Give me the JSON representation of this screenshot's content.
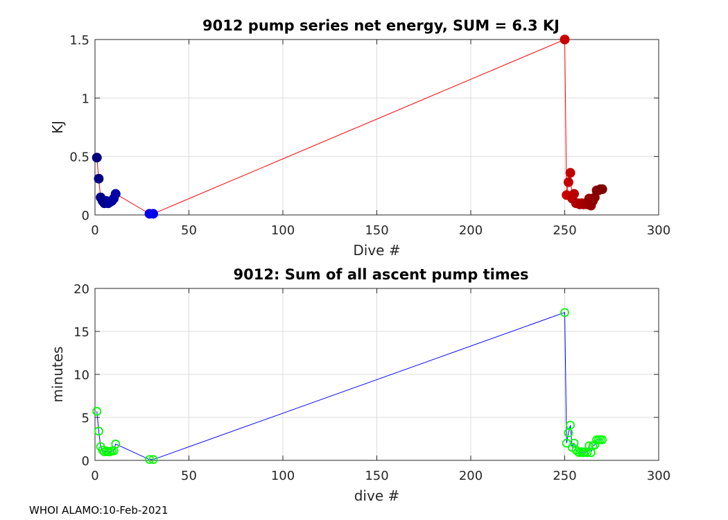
{
  "footer": "WHOI ALAMO:10-Feb-2021",
  "chart_data": [
    {
      "type": "line",
      "title": "9012 pump series net energy, SUM =   6.3 KJ",
      "xlabel": "Dive #",
      "ylabel": "KJ",
      "xlim": [
        0,
        300
      ],
      "ylim": [
        0,
        1.5
      ],
      "xticks": [
        "0",
        "50",
        "100",
        "150",
        "200",
        "250",
        "300"
      ],
      "yticks": [
        "0",
        "0.5",
        "1",
        "1.5"
      ],
      "grid": true,
      "line_color": "#ff0000",
      "marker": "filled-circle",
      "marker_colormap": "jet (colored by dive #)",
      "x": [
        1,
        2,
        3,
        4,
        5,
        6,
        7,
        8,
        9,
        10,
        11,
        29,
        31,
        250,
        251,
        252,
        253,
        254,
        255,
        256,
        257,
        258,
        259,
        260,
        261,
        262,
        263,
        264,
        265,
        266,
        267,
        268,
        269,
        270
      ],
      "values": [
        0.49,
        0.31,
        0.15,
        0.12,
        0.1,
        0.12,
        0.1,
        0.11,
        0.12,
        0.14,
        0.18,
        0.01,
        0.01,
        1.5,
        0.17,
        0.28,
        0.36,
        0.14,
        0.18,
        0.1,
        0.1,
        0.09,
        0.1,
        0.09,
        0.1,
        0.09,
        0.14,
        0.08,
        0.12,
        0.15,
        0.21,
        0.21,
        0.22,
        0.22
      ]
    },
    {
      "type": "line",
      "title": "9012: Sum of all ascent pump times",
      "xlabel": "dive #",
      "ylabel": "minutes",
      "xlim": [
        0,
        300
      ],
      "ylim": [
        0,
        20
      ],
      "xticks": [
        "0",
        "50",
        "100",
        "150",
        "200",
        "250",
        "300"
      ],
      "yticks": [
        "0",
        "5",
        "10",
        "15",
        "20"
      ],
      "grid": true,
      "line_color": "#0000ff",
      "marker": "open-circle",
      "marker_color": "#00ff00",
      "x": [
        1,
        2,
        3,
        4,
        5,
        6,
        7,
        8,
        9,
        10,
        11,
        29,
        31,
        250,
        251,
        252,
        253,
        254,
        255,
        256,
        257,
        258,
        259,
        260,
        261,
        262,
        263,
        264,
        265,
        266,
        267,
        268,
        269,
        270
      ],
      "values": [
        5.7,
        3.4,
        1.6,
        1.2,
        1.0,
        1.1,
        1.0,
        1.0,
        1.1,
        1.1,
        1.9,
        0.1,
        0.1,
        17.2,
        2.0,
        3.2,
        4.1,
        1.5,
        2.0,
        1.2,
        1.0,
        0.9,
        1.0,
        0.9,
        1.0,
        0.9,
        1.7,
        0.9,
        1.7,
        1.8,
        2.4,
        2.4,
        2.4,
        2.4
      ]
    }
  ]
}
